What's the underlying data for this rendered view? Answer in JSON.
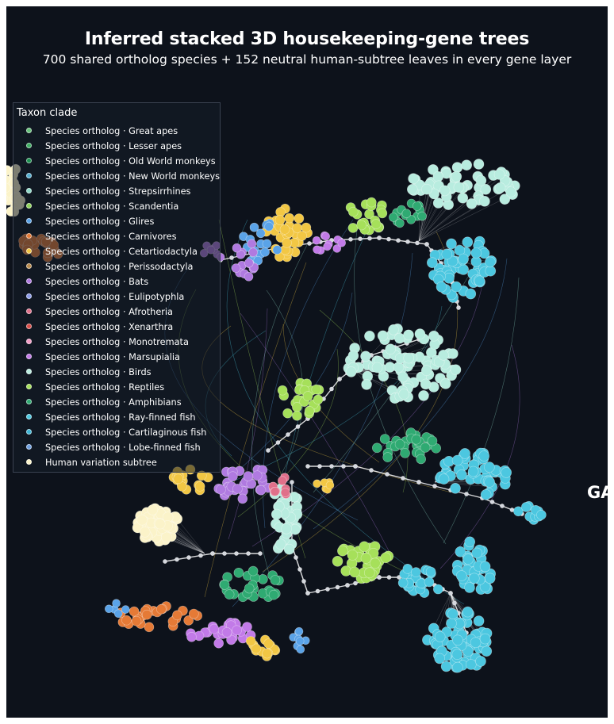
{
  "figure": {
    "title": "Inferred stacked 3D housekeeping-gene trees",
    "subtitle": "700 shared ortholog species + 152 neutral human-subtree leaves in every gene layer",
    "side_label": "GA",
    "background_color": "#0d121b"
  },
  "legend": {
    "title": "Taxon clade",
    "items": [
      {
        "label": "Species ortholog · Great apes",
        "color": "#66c27a"
      },
      {
        "label": "Species ortholog · Lesser apes",
        "color": "#3fae63"
      },
      {
        "label": "Species ortholog · Old World monkeys",
        "color": "#1c9150"
      },
      {
        "label": "Species ortholog · New World monkeys",
        "color": "#55aecf"
      },
      {
        "label": "Species ortholog · Strepsirrhines",
        "color": "#8fd9c8"
      },
      {
        "label": "Species ortholog · Scandentia",
        "color": "#8fd45a"
      },
      {
        "label": "Species ortholog · Glires",
        "color": "#5aa3e8"
      },
      {
        "label": "Species ortholog · Carnivores",
        "color": "#e57a36"
      },
      {
        "label": "Species ortholog · Cetartiodactyla",
        "color": "#f2c744"
      },
      {
        "label": "Species ortholog · Perissodactyla",
        "color": "#b88a4c"
      },
      {
        "label": "Species ortholog · Bats",
        "color": "#b07ae0"
      },
      {
        "label": "Species ortholog · Eulipotyphla",
        "color": "#8c9ce8"
      },
      {
        "label": "Species ortholog · Afrotheria",
        "color": "#e0708a"
      },
      {
        "label": "Species ortholog · Xenarthra",
        "color": "#d94c47"
      },
      {
        "label": "Species ortholog · Monotremata",
        "color": "#f29bc4"
      },
      {
        "label": "Species ortholog · Marsupialia",
        "color": "#c27ae8"
      },
      {
        "label": "Species ortholog · Birds",
        "color": "#b8ecdf"
      },
      {
        "label": "Species ortholog · Reptiles",
        "color": "#a6e05a"
      },
      {
        "label": "Species ortholog · Amphibians",
        "color": "#2faa72"
      },
      {
        "label": "Species ortholog · Ray-finned fish",
        "color": "#4cc7e0"
      },
      {
        "label": "Species ortholog · Cartilaginous fish",
        "color": "#3fb6d6"
      },
      {
        "label": "Species ortholog · Lobe-finned fish",
        "color": "#6fa0e0"
      },
      {
        "label": "Human variation subtree",
        "color": "#fbf3c9"
      }
    ]
  }
}
